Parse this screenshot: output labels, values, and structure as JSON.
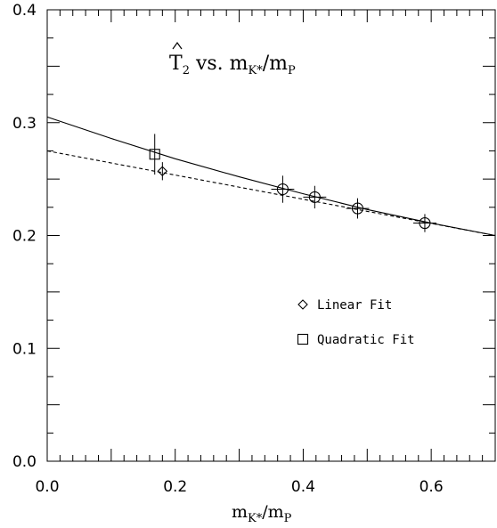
{
  "chart_data": {
    "type": "scatter",
    "title": {
      "main": "T",
      "sub": "2",
      "mid": " vs. m",
      "sub2": "K*",
      "slash": "/m",
      "sub3": "P"
    },
    "xlabel": {
      "main": "m",
      "sub": "K*",
      "slash": "/m",
      "sub2": "P"
    },
    "ylabel": "",
    "xlim": [
      0.0,
      0.7
    ],
    "ylim": [
      0.0,
      0.4
    ],
    "xticks": [
      "0.0",
      "0.2",
      "0.4",
      "0.6"
    ],
    "yticks": [
      "0.0",
      "0.1",
      "0.2",
      "0.3",
      "0.4"
    ],
    "grid": false,
    "legend": {
      "position": "right-middle",
      "entries": [
        "Linear Fit",
        "Quadratic Fit"
      ]
    },
    "series": [
      {
        "marker": "circle",
        "points": [
          {
            "x": 0.368,
            "y": 0.241,
            "yerr": 0.012,
            "xerr": 0.018
          },
          {
            "x": 0.418,
            "y": 0.234,
            "yerr": 0.01,
            "xerr": 0.018
          },
          {
            "x": 0.485,
            "y": 0.224,
            "yerr": 0.009,
            "xerr": 0.018
          },
          {
            "x": 0.59,
            "y": 0.211,
            "yerr": 0.008,
            "xerr": 0.018
          }
        ]
      },
      {
        "name": "Linear Fit",
        "marker": "diamond",
        "points": [
          {
            "x": 0.18,
            "y": 0.257,
            "yerr": 0.008
          }
        ]
      },
      {
        "name": "Quadratic Fit",
        "marker": "square",
        "points": [
          {
            "x": 0.168,
            "y": 0.272,
            "yerr": 0.018
          }
        ]
      }
    ],
    "fits": [
      {
        "name": "Linear Fit",
        "style": "dashed",
        "x": [
          0.0,
          0.7
        ],
        "y": [
          0.275,
          0.2
        ]
      },
      {
        "name": "Quadratic Fit",
        "style": "solid",
        "x": [
          0.0,
          0.1,
          0.2,
          0.3,
          0.4,
          0.5,
          0.6,
          0.7
        ],
        "y": [
          0.305,
          0.286,
          0.268,
          0.252,
          0.237,
          0.223,
          0.211,
          0.2
        ]
      }
    ]
  }
}
